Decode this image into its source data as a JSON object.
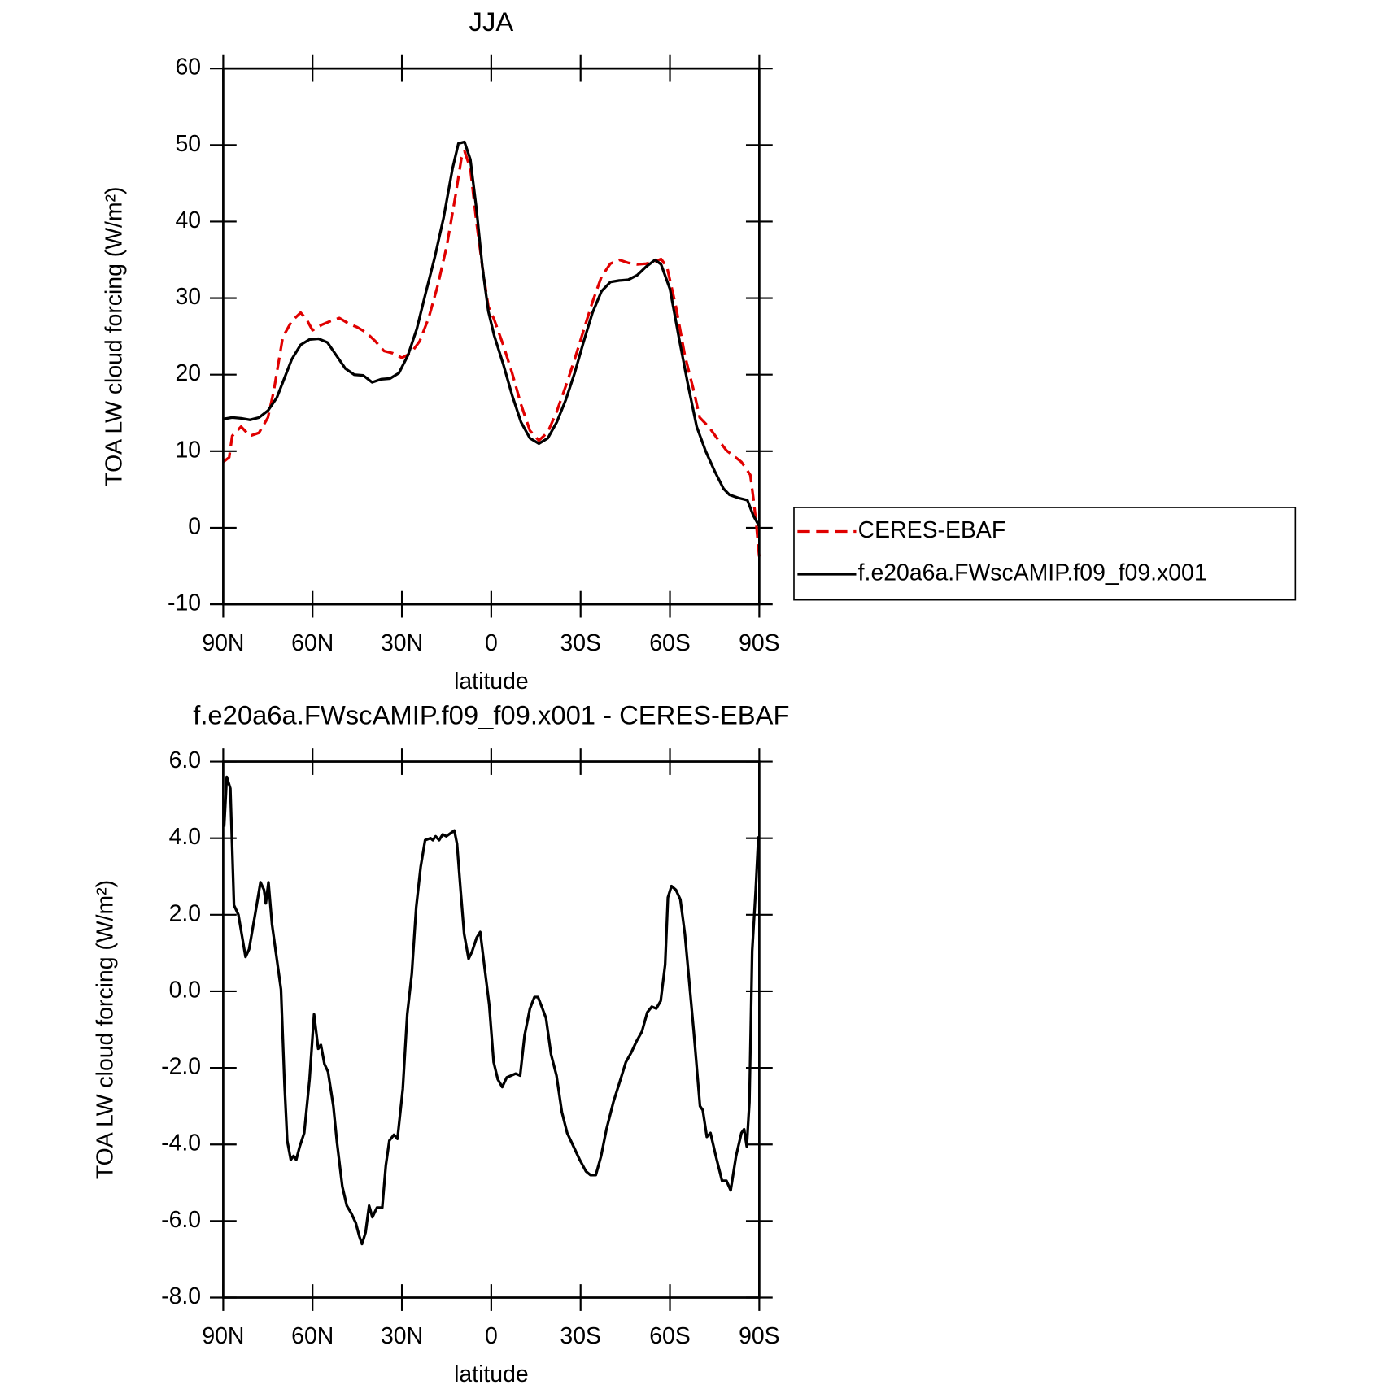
{
  "chart_data": [
    {
      "type": "line",
      "title": "JJA",
      "xlabel": "latitude",
      "ylabel": "TOA LW cloud forcing (W/m²)",
      "xlim": [
        90,
        -90
      ],
      "xticks": [
        {
          "value": 90,
          "label": "90N"
        },
        {
          "value": 60,
          "label": "60N"
        },
        {
          "value": 30,
          "label": "30N"
        },
        0,
        {
          "value": -30,
          "label": "30S"
        },
        {
          "value": -60,
          "label": "60S"
        },
        {
          "value": -90,
          "label": "90S"
        }
      ],
      "ylim": [
        -10,
        60
      ],
      "yticks": [
        -10,
        0,
        10,
        20,
        30,
        40,
        50,
        60
      ],
      "legend": "right",
      "series": [
        {
          "name": "CERES-EBAF",
          "color": "#e00000",
          "dashed": true,
          "x": [
            90,
            88,
            87,
            84,
            81,
            78,
            75,
            73,
            70,
            67,
            64,
            62,
            60,
            57,
            54,
            51,
            48,
            45,
            42,
            39,
            36,
            33,
            30,
            27,
            24,
            21,
            18,
            15,
            12,
            10,
            9,
            7,
            5,
            3,
            1,
            -1,
            -4,
            -7,
            -10,
            -13,
            -16,
            -19,
            -22,
            -25,
            -28,
            -31,
            -34,
            -37,
            -40,
            -43,
            -46,
            -49,
            -52,
            -55,
            -57,
            -59,
            -62,
            -65,
            -68,
            -70,
            -73,
            -76,
            -79,
            -82,
            -84,
            -87,
            -88,
            -89,
            -90
          ],
          "values": [
            8.6,
            9.2,
            12,
            13.2,
            12,
            12.4,
            14.4,
            17.9,
            24.9,
            27,
            28.1,
            27.2,
            25.8,
            26.5,
            27,
            27.4,
            26.7,
            26.2,
            25.5,
            24.4,
            23.1,
            22.8,
            22.2,
            22.8,
            24.4,
            27.4,
            31.6,
            36.7,
            43.4,
            48.3,
            49.2,
            46.9,
            40,
            34.1,
            28.9,
            27.2,
            23.9,
            20.2,
            16.1,
            12.7,
            11.4,
            12.5,
            15.2,
            18.5,
            22,
            25.8,
            29.5,
            32.8,
            34.5,
            35,
            34.6,
            34.4,
            34.5,
            34.8,
            35.1,
            34.1,
            28.9,
            22.5,
            17.9,
            14.4,
            13.2,
            11.6,
            10.1,
            9.2,
            8.6,
            6.9,
            3.9,
            0.5,
            -3.9
          ]
        },
        {
          "name": "f.e20a6a.FWscAMIP.f09_f09.x001",
          "color": "#000000",
          "dashed": false,
          "x": [
            90,
            87,
            84,
            81,
            78,
            75,
            72,
            70,
            67,
            64,
            61,
            58,
            55,
            52,
            49,
            46,
            43,
            40,
            37,
            34,
            31,
            28,
            25,
            22,
            19,
            16,
            13,
            11,
            9,
            7,
            5,
            3,
            1,
            -1,
            -4,
            -7,
            -10,
            -13,
            -16,
            -19,
            -22,
            -25,
            -28,
            -31,
            -34,
            -37,
            -40,
            -43,
            -46,
            -49,
            -52,
            -55,
            -57,
            -60,
            -63,
            -66,
            -69,
            -72,
            -75,
            -78,
            -80,
            -83,
            -86,
            -88,
            -90
          ],
          "values": [
            14.2,
            14.4,
            14.3,
            14.1,
            14.4,
            15.3,
            17,
            19,
            22,
            23.9,
            24.6,
            24.7,
            24.2,
            22.5,
            20.8,
            20,
            19.9,
            19,
            19.4,
            19.5,
            20.2,
            22.5,
            26,
            30.7,
            35.3,
            40.5,
            46.9,
            50.2,
            50.4,
            48.1,
            41.7,
            34.1,
            28.3,
            25.1,
            21.4,
            17.3,
            13.8,
            11.7,
            11,
            11.7,
            13.8,
            16.7,
            20.2,
            24.3,
            28.1,
            30.9,
            32.1,
            32.3,
            32.4,
            33,
            34.1,
            35,
            34.4,
            31.2,
            24.9,
            18.8,
            13.2,
            10,
            7.4,
            5.1,
            4.3,
            3.9,
            3.6,
            1.6,
            0.2
          ]
        }
      ]
    },
    {
      "type": "line",
      "title": "f.e20a6a.FWscAMIP.f09_f09.x001 - CERES-EBAF",
      "xlabel": "latitude",
      "ylabel": "TOA LW cloud forcing (W/m²)",
      "xlim": [
        90,
        -90
      ],
      "xticks": [
        {
          "value": 90,
          "label": "90N"
        },
        {
          "value": 60,
          "label": "60N"
        },
        {
          "value": 30,
          "label": "30N"
        },
        0,
        {
          "value": -30,
          "label": "30S"
        },
        {
          "value": -60,
          "label": "60S"
        },
        {
          "value": -90,
          "label": "90S"
        }
      ],
      "ylim": [
        -8,
        6
      ],
      "yticks": [
        {
          "value": -8,
          "label": "-8.0"
        },
        {
          "value": -6,
          "label": "-6.0"
        },
        {
          "value": -4,
          "label": "-4.0"
        },
        {
          "value": -2,
          "label": "-2.0"
        },
        {
          "value": 0,
          "label": "0.0"
        },
        {
          "value": 2,
          "label": "2.0"
        },
        {
          "value": 4,
          "label": "4.0"
        },
        {
          "value": 6,
          "label": "6.0"
        }
      ],
      "x": [
        89.7,
        88.8,
        87.6,
        86.4,
        84.9,
        82.5,
        81.3,
        79.3,
        77.5,
        76.3,
        75.7,
        74.8,
        73.6,
        70.6,
        69.4,
        68.5,
        67.3,
        66.4,
        65.5,
        64.3,
        62.8,
        61.0,
        59.5,
        58.1,
        57.2,
        56.0,
        54.8,
        53.0,
        51.8,
        50.0,
        48.5,
        47.0,
        45.5,
        44.3,
        43.4,
        42.2,
        41.0,
        39.9,
        38.4,
        36.6,
        35.4,
        34.2,
        32.7,
        31.5,
        29.7,
        28.2,
        26.7,
        25.2,
        23.7,
        22.2,
        20.4,
        19.6,
        18.7,
        17.5,
        16.3,
        15.1,
        13.3,
        12.4,
        11.5,
        10.3,
        9.1,
        7.6,
        6.4,
        4.9,
        3.7,
        2.2,
        0.7,
        -0.8,
        -2.2,
        -3.7,
        -5.2,
        -6.7,
        -8.2,
        -9.7,
        -11.2,
        -13.0,
        -14.5,
        -15.7,
        -17.2,
        -18.4,
        -20.1,
        -21.9,
        -23.7,
        -25.5,
        -27.6,
        -29.7,
        -31.8,
        -33.3,
        -35.1,
        -36.9,
        -38.7,
        -41.0,
        -43.4,
        -45.2,
        -47.0,
        -48.8,
        -50.6,
        -52.4,
        -53.9,
        -55.4,
        -56.9,
        -58.4,
        -59.3,
        -60.5,
        -62.0,
        -63.5,
        -65.0,
        -68.0,
        -70.1,
        -71.0,
        -72.4,
        -73.6,
        -75.4,
        -77.5,
        -79.0,
        -80.4,
        -82.2,
        -84.0,
        -84.9,
        -85.8,
        -86.7,
        -87.6,
        -88.8,
        -89.7
      ],
      "series": [
        {
          "color": "#000000",
          "dashed": false,
          "values": [
            4.3,
            5.6,
            5.3,
            2.25,
            2.0,
            0.9,
            1.1,
            2.0,
            2.85,
            2.65,
            2.3,
            2.85,
            1.75,
            0.05,
            -2.45,
            -3.9,
            -4.4,
            -4.3,
            -4.4,
            -4.05,
            -3.7,
            -2.3,
            -0.6,
            -1.5,
            -1.4,
            -1.9,
            -2.1,
            -3.0,
            -3.95,
            -5.1,
            -5.6,
            -5.8,
            -6.05,
            -6.4,
            -6.6,
            -6.3,
            -5.6,
            -5.9,
            -5.65,
            -5.65,
            -4.55,
            -3.9,
            -3.75,
            -3.85,
            -2.55,
            -0.6,
            0.45,
            2.2,
            3.25,
            3.95,
            4.0,
            3.95,
            4.05,
            3.95,
            4.1,
            4.05,
            4.15,
            4.2,
            3.85,
            2.65,
            1.5,
            0.85,
            1.05,
            1.4,
            1.55,
            0.6,
            -0.35,
            -1.85,
            -2.3,
            -2.5,
            -2.25,
            -2.2,
            -2.15,
            -2.2,
            -1.15,
            -0.45,
            -0.15,
            -0.15,
            -0.45,
            -0.7,
            -1.65,
            -2.2,
            -3.15,
            -3.7,
            -4.05,
            -4.4,
            -4.7,
            -4.8,
            -4.8,
            -4.3,
            -3.6,
            -2.9,
            -2.3,
            -1.85,
            -1.6,
            -1.3,
            -1.05,
            -0.55,
            -0.4,
            -0.45,
            -0.25,
            0.7,
            2.45,
            2.75,
            2.65,
            2.4,
            1.5,
            -1.05,
            -3.0,
            -3.1,
            -3.8,
            -3.7,
            -4.3,
            -4.95,
            -4.95,
            -5.2,
            -4.3,
            -3.7,
            -3.6,
            -4.05,
            -2.9,
            1.05,
            2.65,
            4.05
          ]
        }
      ]
    }
  ]
}
